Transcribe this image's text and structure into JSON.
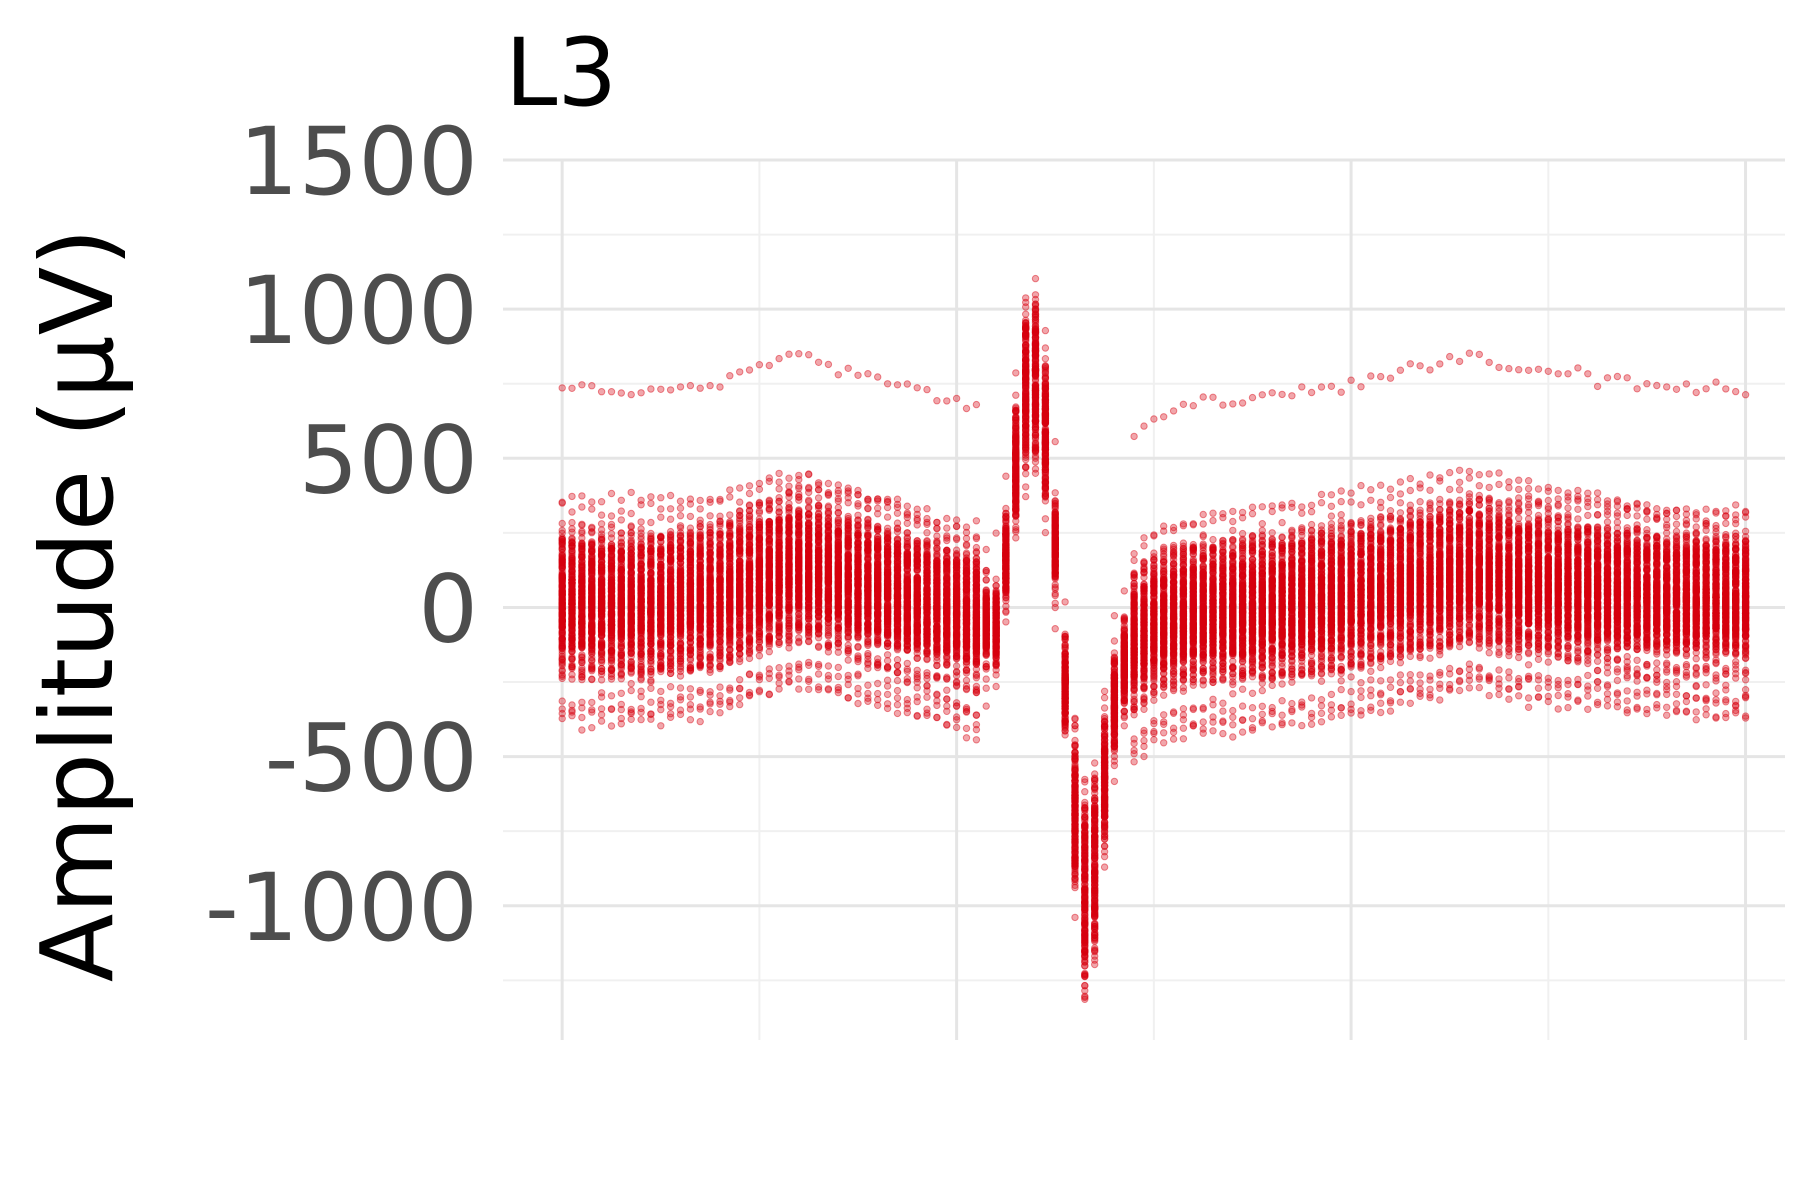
{
  "chart_data": {
    "type": "scatter",
    "title": "L3",
    "ylabel": "Amplitude (µV)",
    "xlabel": "",
    "ylim": [
      -1450,
      1500
    ],
    "xlim": [
      -3,
      62
    ],
    "y_ticks": [
      1500,
      1000,
      500,
      0,
      -500,
      -1000
    ],
    "y_tick_labels": [
      "1500",
      "1000",
      "500",
      "0",
      "-500",
      "-1000"
    ],
    "x_major_breaks": [
      0,
      20,
      40,
      60
    ],
    "x_minor_breaks": [
      10,
      30,
      50
    ],
    "x_tick_labels": [],
    "grid": true,
    "legend": "none",
    "point_color": "#d7000f",
    "point_alpha": 0.35,
    "n_waveforms": 200,
    "series": [
      {
        "description_of_shape": "mean spike waveform",
        "x": [
          0,
          4,
          8,
          10,
          12,
          16,
          20,
          21,
          22,
          22.5,
          23,
          23.5,
          24,
          24.5,
          25,
          25.5,
          26,
          26.5,
          27,
          27.5,
          28,
          28.5,
          29,
          30,
          32,
          36,
          40,
          44,
          46,
          48,
          52,
          56,
          60
        ],
        "values": [
          20,
          10,
          40,
          90,
          130,
          60,
          -20,
          -40,
          -60,
          150,
          450,
          700,
          720,
          550,
          200,
          -250,
          -650,
          -900,
          -820,
          -550,
          -300,
          -180,
          -120,
          -60,
          -20,
          0,
          40,
          90,
          120,
          90,
          60,
          30,
          20
        ]
      }
    ]
  }
}
